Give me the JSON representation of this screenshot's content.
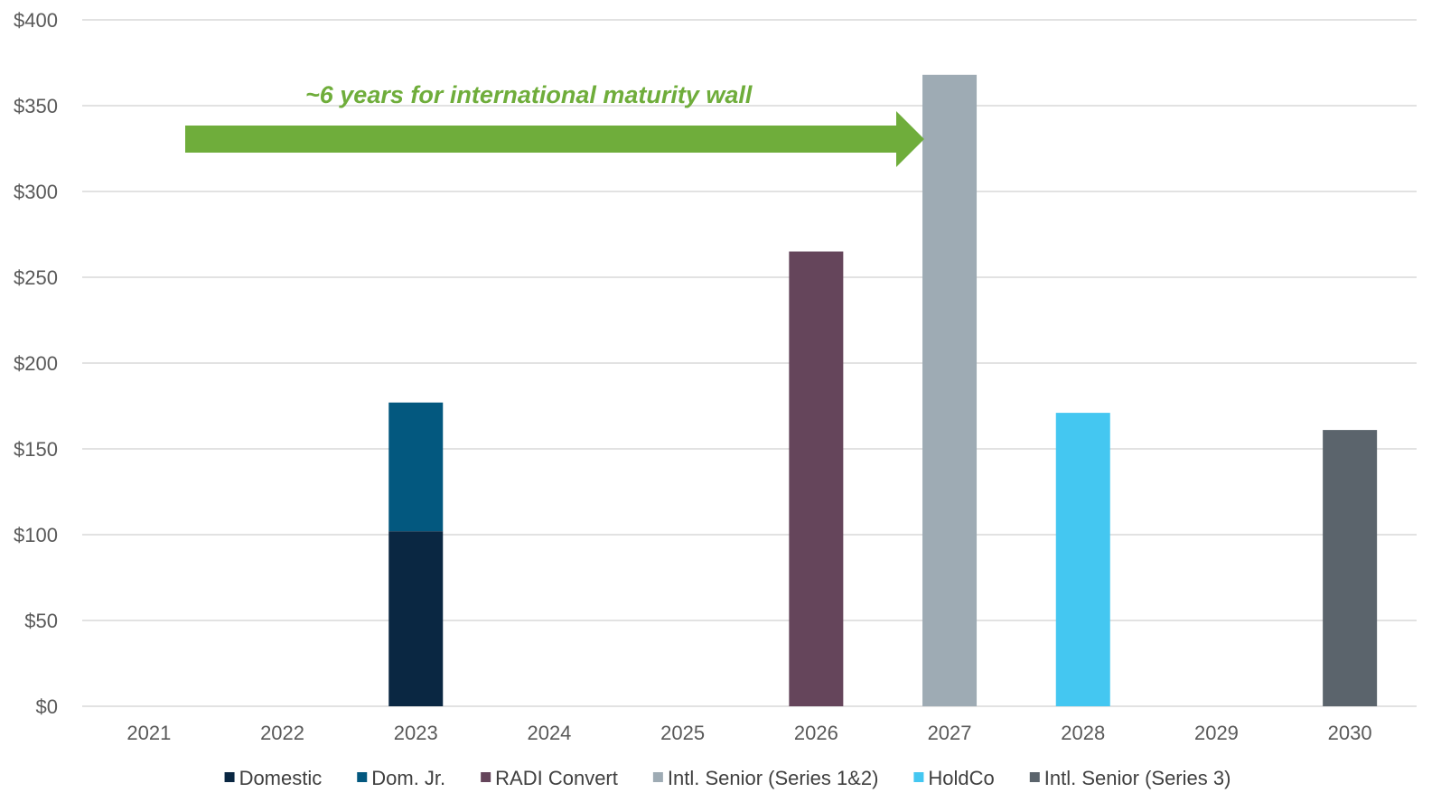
{
  "chart_data": {
    "type": "bar",
    "stacked": true,
    "categories": [
      "2021",
      "2022",
      "2023",
      "2024",
      "2025",
      "2026",
      "2027",
      "2028",
      "2029",
      "2030"
    ],
    "ylim": [
      0,
      400
    ],
    "yticks": [
      0,
      50,
      100,
      150,
      200,
      250,
      300,
      350,
      400
    ],
    "ytick_labels": [
      "$0",
      "$50",
      "$100",
      "$150",
      "$200",
      "$250",
      "$300",
      "$350",
      "$400"
    ],
    "grid": true,
    "legend_placement": "bottom",
    "series": [
      {
        "name": "Domestic",
        "color": "#0a2742",
        "values": [
          0,
          0,
          102,
          0,
          0,
          0,
          0,
          0,
          0,
          0
        ]
      },
      {
        "name": "Dom. Jr.",
        "color": "#03587f",
        "values": [
          0,
          0,
          75,
          0,
          0,
          0,
          0,
          0,
          0,
          0
        ]
      },
      {
        "name": "RADI Convert",
        "color": "#65455b",
        "values": [
          0,
          0,
          0,
          0,
          0,
          265,
          0,
          0,
          0,
          0
        ]
      },
      {
        "name": "Intl. Senior (Series 1&2)",
        "color": "#9eabb4",
        "values": [
          0,
          0,
          0,
          0,
          0,
          0,
          368,
          0,
          0,
          0
        ]
      },
      {
        "name": "HoldCo",
        "color": "#44c7f1",
        "values": [
          0,
          0,
          0,
          0,
          0,
          0,
          0,
          171,
          0,
          0
        ]
      },
      {
        "name": "Intl. Senior (Series 3)",
        "color": "#5b646c",
        "values": [
          0,
          0,
          0,
          0,
          0,
          0,
          0,
          0,
          0,
          161
        ]
      }
    ],
    "annotation": {
      "text": "~6 years for international maturity wall",
      "color": "#6fad3b",
      "arrow_from": "2021",
      "arrow_to": "2027"
    }
  }
}
